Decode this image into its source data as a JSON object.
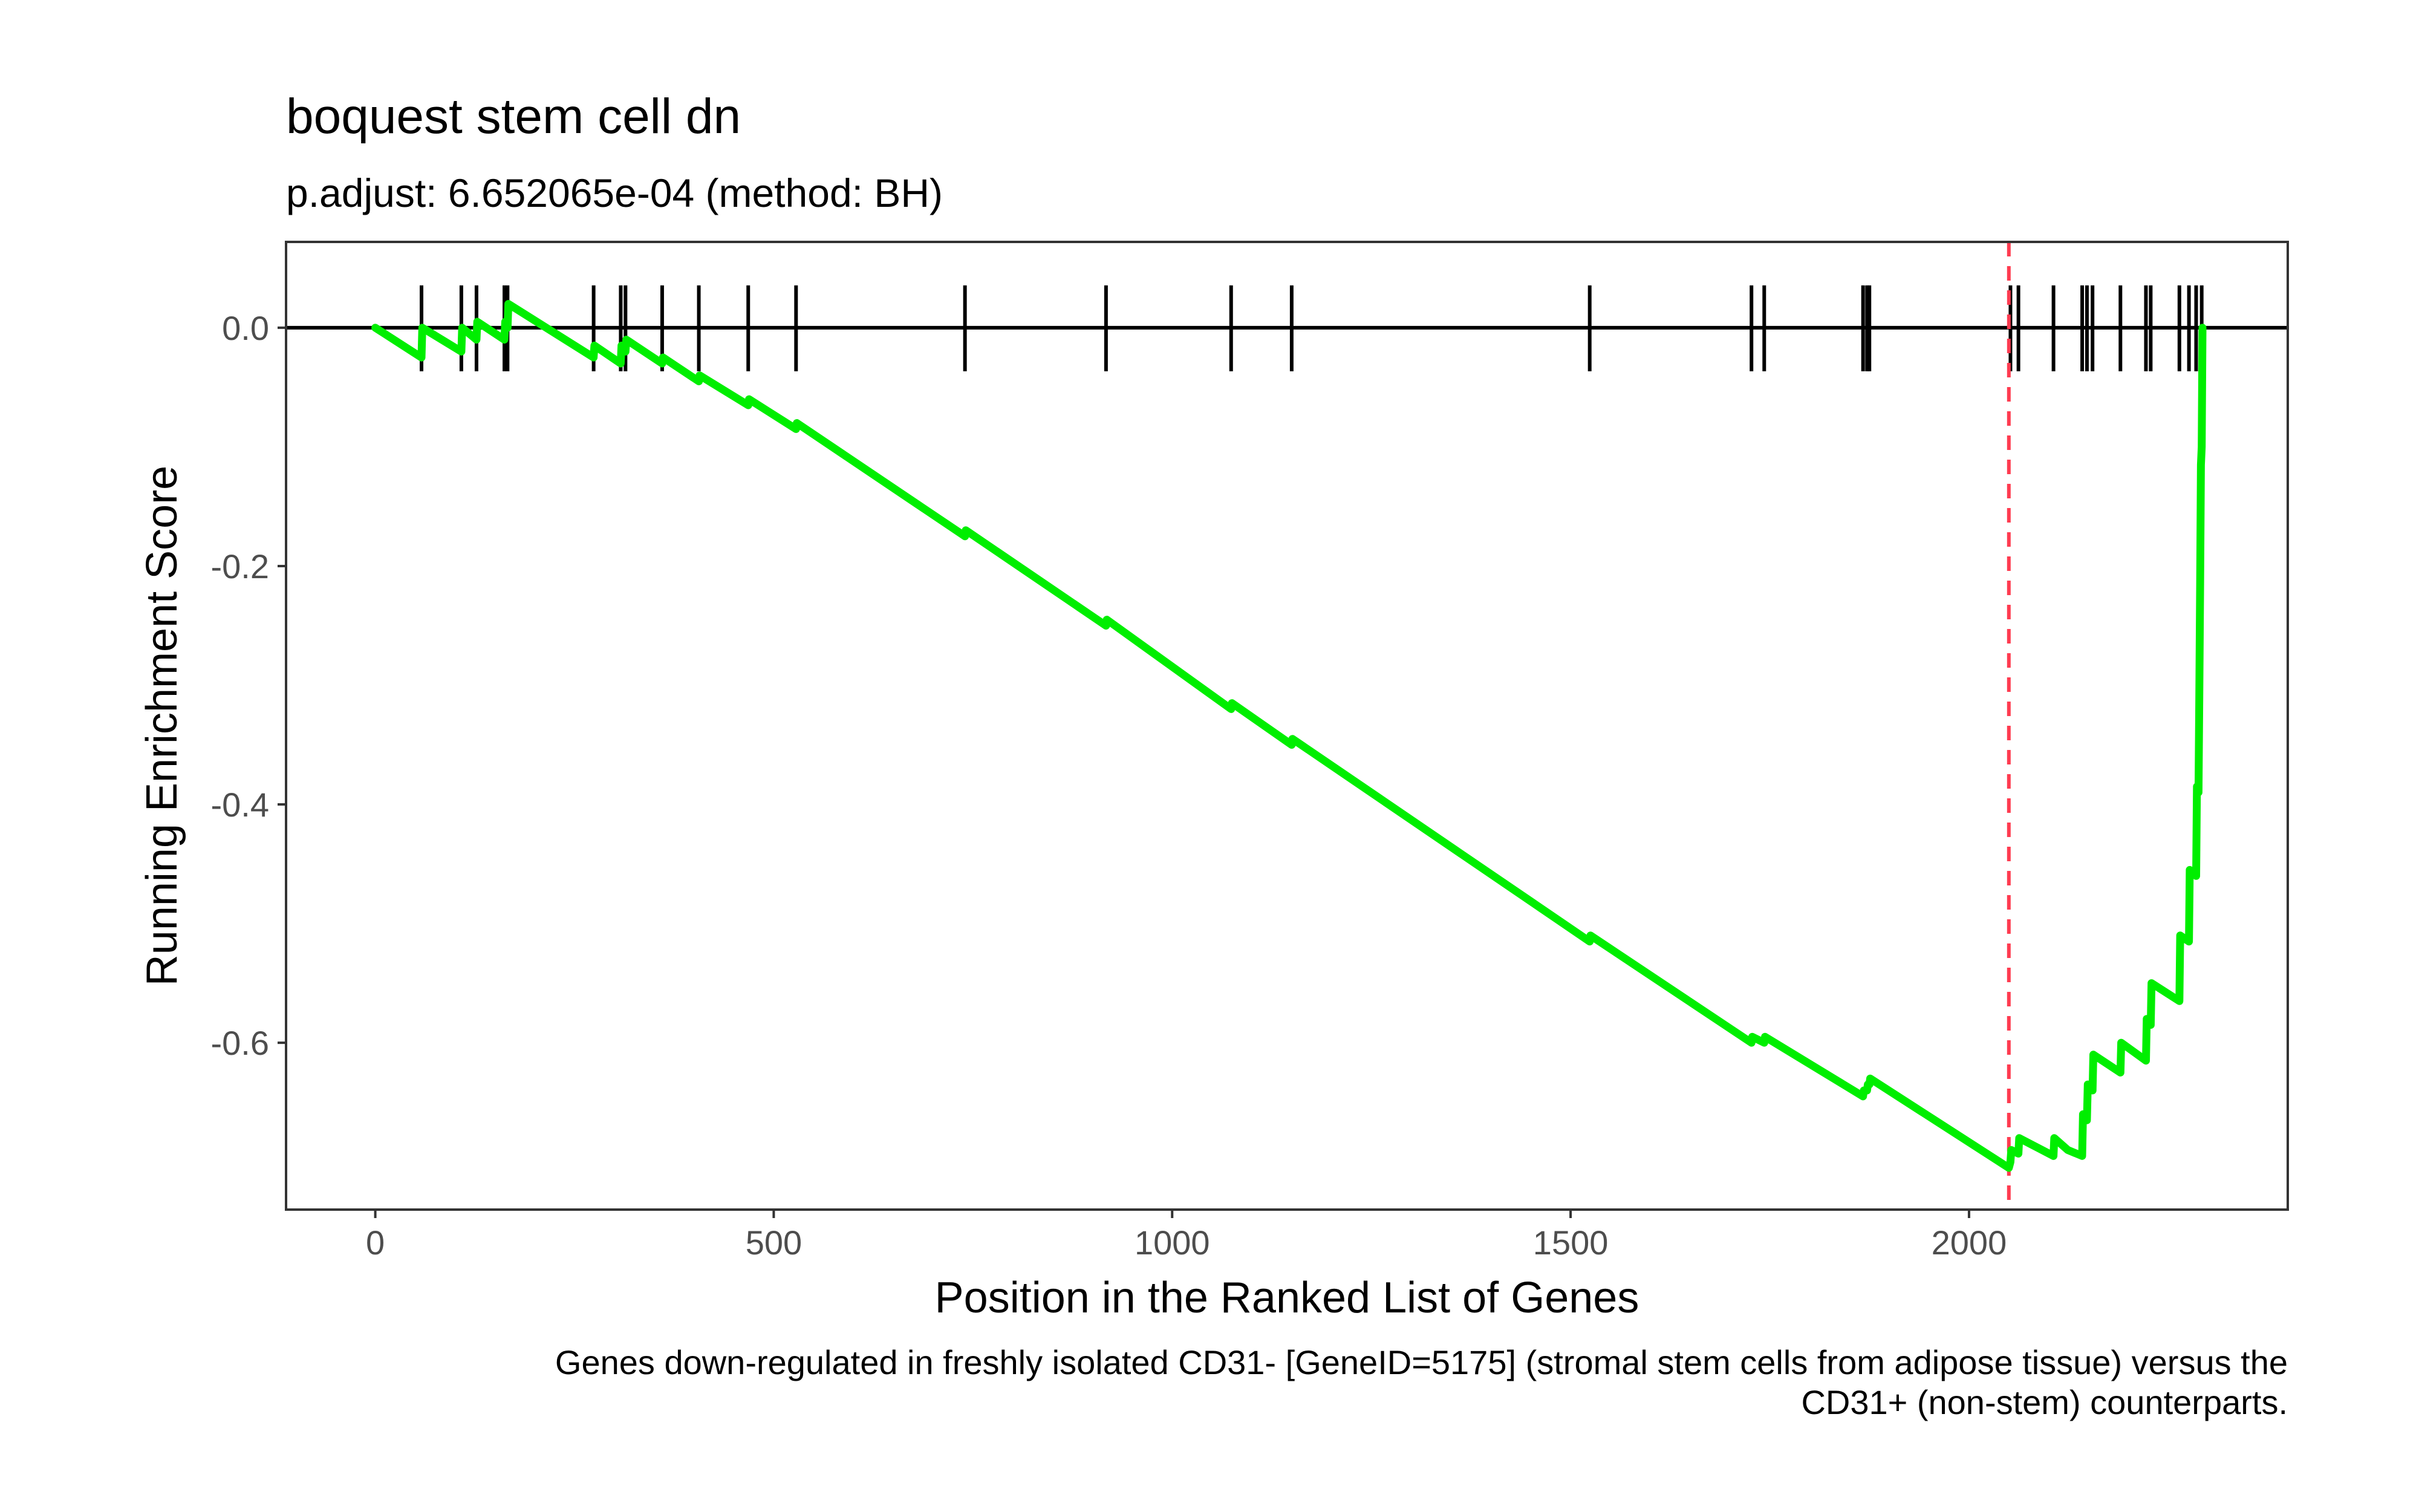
{
  "chart_data": {
    "type": "line",
    "title": "boquest stem cell dn",
    "subtitle": "p.adjust: 6.652065e-04 (method: BH)",
    "xlabel": "Position in the Ranked List of Genes",
    "ylabel": "Running Enrichment Score",
    "caption_lines": [
      "Genes down-regulated in freshly isolated CD31- [GeneID=5175] (stromal stem cells from adipose tissue) versus the",
      "CD31+ (non-stem) counterparts."
    ],
    "xlim": [
      -112,
      2400
    ],
    "ylim": [
      -0.74,
      0.072
    ],
    "x_ticks": [
      0,
      500,
      1000,
      1500,
      2000
    ],
    "x_tick_labels": [
      "0",
      "500",
      "1000",
      "1500",
      "2000"
    ],
    "y_ticks": [
      0.0,
      -0.2,
      -0.4,
      -0.6
    ],
    "y_tick_labels": [
      "0.0",
      "-0.2",
      "-0.4",
      "-0.6"
    ],
    "grid": false,
    "max_deviation_position": 2050,
    "colors": {
      "curve": "#00ee00",
      "hit_lines": "#000000",
      "zero_line": "#000000",
      "max_deviation_line": "#ff3b50",
      "axis_text": "#4d4d4d",
      "panel_border": "#333333"
    },
    "gene_hits": [
      58,
      108,
      127,
      162,
      166,
      274,
      308,
      314,
      360,
      406,
      468,
      528,
      740,
      917,
      1074,
      1150,
      1524,
      1727,
      1743,
      1867,
      1872,
      1875,
      2052,
      2062,
      2106,
      2142,
      2148,
      2155,
      2190,
      2222,
      2228,
      2264,
      2276,
      2285,
      2292
    ],
    "series": [
      {
        "name": "Running Enrichment Score",
        "x": [
          0,
          58,
          59,
          108,
          109,
          127,
          128,
          162,
          163,
          166,
          167,
          274,
          275,
          308,
          309,
          314,
          315,
          360,
          361,
          406,
          407,
          468,
          469,
          528,
          529,
          740,
          741,
          917,
          918,
          1074,
          1075,
          1150,
          1151,
          1524,
          1525,
          1727,
          1728,
          1743,
          1744,
          1867,
          1868,
          1872,
          1873,
          1875,
          1876,
          2050,
          2052,
          2053,
          2062,
          2063,
          2106,
          2107,
          2124,
          2142,
          2143,
          2148,
          2149,
          2155,
          2156,
          2190,
          2191,
          2222,
          2223,
          2228,
          2229,
          2264,
          2265,
          2276,
          2277,
          2285,
          2286,
          2288,
          2289,
          2290,
          2291,
          2292,
          2293
        ],
        "values": [
          0.0,
          -0.025,
          0.0,
          -0.02,
          0.0,
          -0.01,
          0.005,
          -0.01,
          0.005,
          0.0,
          0.02,
          -0.025,
          -0.015,
          -0.03,
          -0.015,
          -0.02,
          -0.01,
          -0.03,
          -0.025,
          -0.045,
          -0.04,
          -0.065,
          -0.06,
          -0.085,
          -0.08,
          -0.175,
          -0.17,
          -0.25,
          -0.245,
          -0.32,
          -0.315,
          -0.35,
          -0.345,
          -0.515,
          -0.51,
          -0.6,
          -0.595,
          -0.6,
          -0.595,
          -0.645,
          -0.64,
          -0.64,
          -0.635,
          -0.635,
          -0.63,
          -0.705,
          -0.7,
          -0.69,
          -0.693,
          -0.68,
          -0.695,
          -0.68,
          -0.69,
          -0.695,
          -0.66,
          -0.665,
          -0.635,
          -0.64,
          -0.61,
          -0.625,
          -0.6,
          -0.615,
          -0.58,
          -0.585,
          -0.55,
          -0.565,
          -0.51,
          -0.515,
          -0.455,
          -0.46,
          -0.385,
          -0.39,
          -0.31,
          -0.215,
          -0.115,
          -0.1,
          0.0
        ]
      }
    ]
  }
}
